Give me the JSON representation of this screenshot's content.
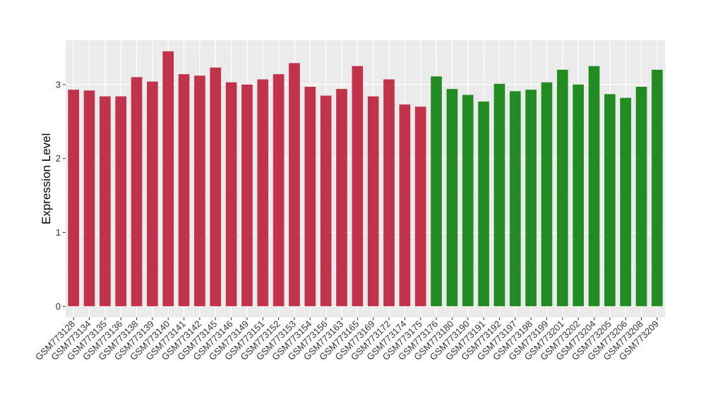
{
  "chart_data": {
    "type": "bar",
    "ylabel": "Expression Level",
    "xlabel": "",
    "ylim": [
      -0.15,
      3.6
    ],
    "yticks": [
      0,
      1,
      2,
      3
    ],
    "ytick_labels": [
      "0",
      "1",
      "2",
      "3"
    ],
    "grid": true,
    "panel_background": "#ebebeb",
    "categories": [
      "GSM773128",
      "GSM773134",
      "GSM773135",
      "GSM773136",
      "GSM773138",
      "GSM773139",
      "GSM773140",
      "GSM773141",
      "GSM773142",
      "GSM773145",
      "GSM773146",
      "GSM773149",
      "GSM773151",
      "GSM773152",
      "GSM773153",
      "GSM773154",
      "GSM773156",
      "GSM773163",
      "GSM773165",
      "GSM773169",
      "GSM773172",
      "GSM773174",
      "GSM773175",
      "GSM773176",
      "GSM773180",
      "GSM773190",
      "GSM773191",
      "GSM773192",
      "GSM773197",
      "GSM773198",
      "GSM773199",
      "GSM773201",
      "GSM773202",
      "GSM773204",
      "GSM773205",
      "GSM773206",
      "GSM773208",
      "GSM773209"
    ],
    "values": [
      2.93,
      2.92,
      2.84,
      2.84,
      3.1,
      3.04,
      3.45,
      3.14,
      3.12,
      3.23,
      3.03,
      3.0,
      3.07,
      3.14,
      3.29,
      2.97,
      2.85,
      2.94,
      3.25,
      2.84,
      3.07,
      2.73,
      2.7,
      3.11,
      2.94,
      2.86,
      2.77,
      3.01,
      2.91,
      2.93,
      3.03,
      3.2,
      3.0,
      3.25,
      2.87,
      2.82,
      2.97,
      3.2
    ],
    "colors": [
      "#c0334a",
      "#c0334a",
      "#c0334a",
      "#c0334a",
      "#c0334a",
      "#c0334a",
      "#c0334a",
      "#c0334a",
      "#c0334a",
      "#c0334a",
      "#c0334a",
      "#c0334a",
      "#c0334a",
      "#c0334a",
      "#c0334a",
      "#c0334a",
      "#c0334a",
      "#c0334a",
      "#c0334a",
      "#c0334a",
      "#c0334a",
      "#c0334a",
      "#c0334a",
      "#228b22",
      "#228b22",
      "#228b22",
      "#228b22",
      "#228b22",
      "#228b22",
      "#228b22",
      "#228b22",
      "#228b22",
      "#228b22",
      "#228b22",
      "#228b22",
      "#228b22",
      "#228b22",
      "#228b22"
    ]
  }
}
